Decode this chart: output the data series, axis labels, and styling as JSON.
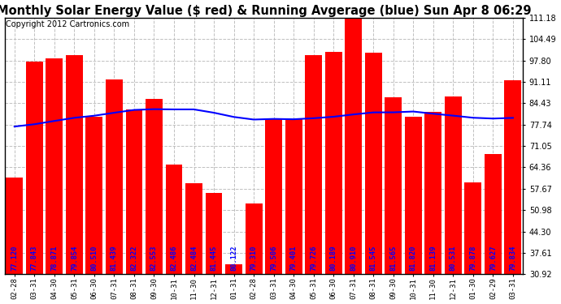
{
  "title": "Monthly Solar Energy Value ($ red) & Running Avgerage (blue) Sun Apr 8 06:29",
  "copyright": "Copyright 2012 Cartronics.com",
  "categories": [
    "02-28",
    "03-31",
    "04-30",
    "05-31",
    "06-30",
    "07-31",
    "08-31",
    "09-30",
    "10-31",
    "11-30",
    "12-31",
    "01-31",
    "02-28",
    "03-31",
    "04-30",
    "05-31",
    "06-30",
    "07-31",
    "08-31",
    "09-30",
    "10-31",
    "11-30",
    "12-31",
    "01-30",
    "02-29",
    "03-31"
  ],
  "bar_values": [
    61.2,
    97.45,
    98.41,
    99.54,
    80.1,
    91.83,
    82.55,
    85.8,
    65.36,
    59.42,
    56.48,
    34.0,
    53.1,
    79.46,
    79.4,
    99.39,
    100.39,
    112.1,
    100.15,
    86.3,
    80.21,
    81.83,
    86.5,
    59.57,
    68.42,
    91.64
  ],
  "bar_labels": [
    "77.120",
    "77.843",
    "78.871",
    "79.854",
    "80.510",
    "81.439",
    "82.322",
    "82.553",
    "82.486",
    "82.484",
    "81.445",
    "80.122",
    "79.310",
    "79.506",
    "79.401",
    "79.726",
    "80.189",
    "80.910",
    "81.545",
    "81.565",
    "81.820",
    "81.139",
    "80.531",
    "79.878",
    "79.627",
    "79.834"
  ],
  "blue_bar_index": 11,
  "running_avg": [
    77.12,
    77.843,
    78.871,
    79.854,
    80.51,
    81.439,
    82.322,
    82.553,
    82.486,
    82.484,
    81.445,
    80.122,
    79.31,
    79.506,
    79.401,
    79.726,
    80.189,
    80.91,
    81.545,
    81.565,
    81.82,
    81.139,
    80.531,
    79.878,
    79.627,
    79.834
  ],
  "bar_color": "#FF0000",
  "line_color": "#0000FF",
  "background_color": "#FFFFFF",
  "text_color_bar": "#0000FF",
  "ytick_values": [
    30.92,
    37.61,
    44.3,
    50.98,
    57.67,
    64.36,
    71.05,
    77.74,
    84.43,
    91.11,
    97.8,
    104.49,
    111.18
  ],
  "ylim_min": 30.92,
  "ylim_max": 111.18,
  "grid_color": "#C0C0C0",
  "label_fontsize": 6.2,
  "title_fontsize": 10.5,
  "copyright_fontsize": 7.0,
  "bar_width": 0.85
}
